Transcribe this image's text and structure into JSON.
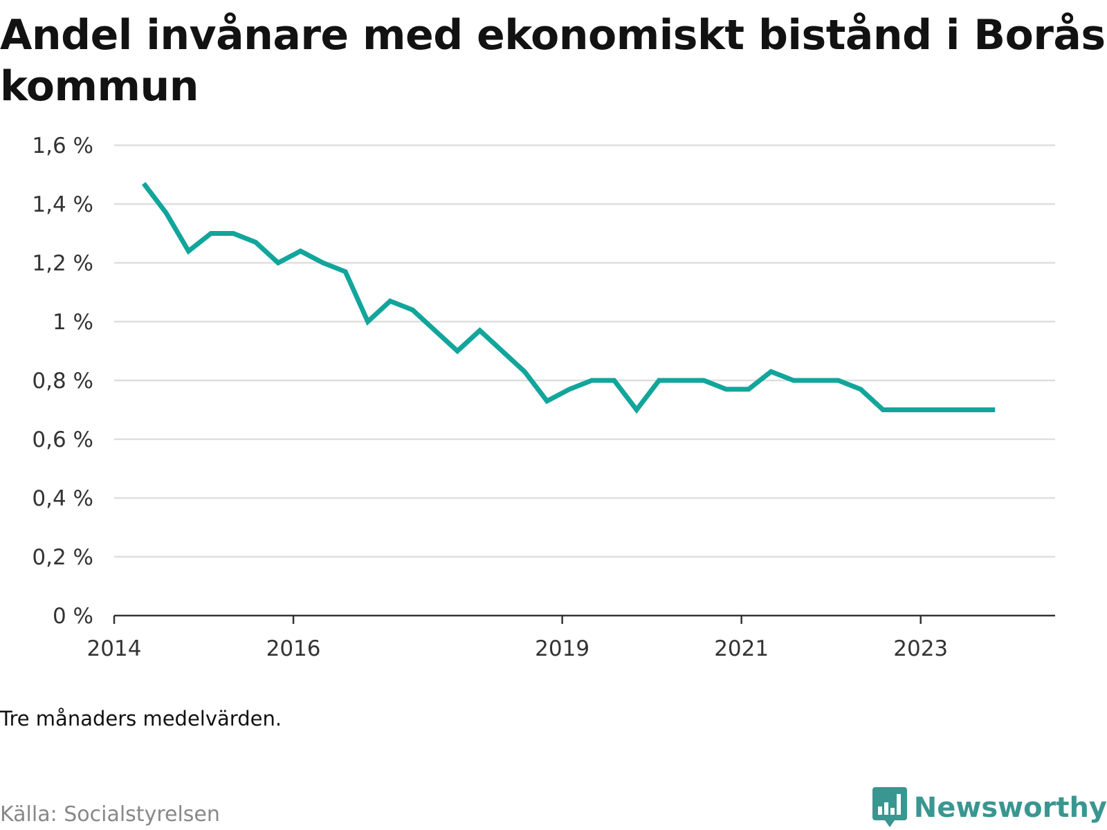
{
  "title": "Andel invånare med ekonomiskt bistånd i Borås kommun",
  "note": "Tre månaders medelvärden.",
  "source": "Källa: Socialstyrelsen",
  "brand": {
    "name": "Newsworthy",
    "icon": "bar-chart-speech-bubble-icon",
    "color": "#3a9690"
  },
  "chart_data": {
    "type": "line",
    "title": "Andel invånare med ekonomiskt bistånd i Borås kommun",
    "xlabel": "",
    "ylabel": "",
    "xlim": [
      2014.0,
      2024.5
    ],
    "ylim": [
      0,
      1.6
    ],
    "x_ticks": [
      {
        "value": 2014,
        "label": "2014"
      },
      {
        "value": 2016,
        "label": "2016"
      },
      {
        "value": 2019,
        "label": "2019"
      },
      {
        "value": 2021,
        "label": "2021"
      },
      {
        "value": 2023,
        "label": "2023"
      }
    ],
    "y_ticks": [
      {
        "value": 0,
        "label": "0 %"
      },
      {
        "value": 0.2,
        "label": "0,2 %"
      },
      {
        "value": 0.4,
        "label": "0,4 %"
      },
      {
        "value": 0.6,
        "label": "0,6 %"
      },
      {
        "value": 0.8,
        "label": "0,8 %"
      },
      {
        "value": 1.0,
        "label": "1 %"
      },
      {
        "value": 1.2,
        "label": "1,2 %"
      },
      {
        "value": 1.4,
        "label": "1,4 %"
      },
      {
        "value": 1.6,
        "label": "1,6 %"
      }
    ],
    "grid": true,
    "line_color": "#12a59b",
    "series": [
      {
        "x": [
          2014.33,
          2014.58,
          2014.83,
          2015.08,
          2015.33,
          2015.58,
          2015.83,
          2016.08,
          2016.33,
          2016.58,
          2016.83,
          2017.08,
          2017.33,
          2017.58,
          2017.83,
          2018.08,
          2018.33,
          2018.58,
          2018.83,
          2019.08,
          2019.33,
          2019.58,
          2019.83,
          2020.08,
          2020.33,
          2020.58,
          2020.83,
          2021.08,
          2021.33,
          2021.58,
          2021.83,
          2022.08,
          2022.33,
          2022.58,
          2022.83,
          2023.08,
          2023.33,
          2023.58,
          2023.83
        ],
        "values": [
          1.47,
          1.37,
          1.24,
          1.3,
          1.3,
          1.27,
          1.2,
          1.24,
          1.2,
          1.17,
          1.0,
          1.07,
          1.04,
          0.97,
          0.9,
          0.97,
          0.9,
          0.83,
          0.73,
          0.77,
          0.8,
          0.8,
          0.7,
          0.8,
          0.8,
          0.8,
          0.77,
          0.77,
          0.83,
          0.8,
          0.8,
          0.8,
          0.77,
          0.7,
          0.7,
          0.7,
          0.7,
          0.7,
          0.7
        ]
      }
    ]
  }
}
